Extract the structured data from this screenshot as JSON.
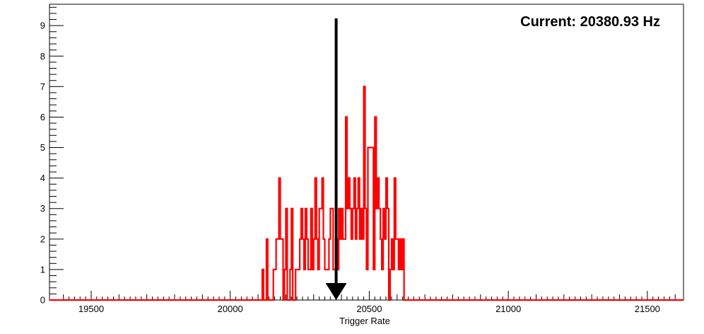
{
  "chart_data": {
    "type": "histogram",
    "title": "",
    "xlabel": "Trigger Rate",
    "ylabel": "",
    "xlim": [
      19350,
      21630
    ],
    "ylim": [
      0,
      9.7
    ],
    "x_ticks": [
      19500,
      20000,
      20500,
      21000,
      21500
    ],
    "x_tick_labels": [
      "19500",
      "20000",
      "20500",
      "21000",
      "21500"
    ],
    "y_ticks": [
      0,
      1,
      2,
      3,
      4,
      5,
      6,
      7,
      8,
      9
    ],
    "y_tick_labels": [
      "0",
      "1",
      "2",
      "3",
      "4",
      "5",
      "6",
      "7",
      "8",
      "9"
    ],
    "grid": false,
    "series": [
      {
        "color": "#ff0000",
        "bin_width": 5,
        "bins_start": 20115,
        "counts": [
          1,
          0,
          0,
          2,
          0,
          0,
          0,
          0,
          1,
          1,
          2,
          2,
          4,
          2,
          2,
          0,
          1,
          3,
          0,
          0,
          1,
          3,
          0,
          0,
          1,
          1,
          1,
          2,
          3,
          2,
          1,
          3,
          2,
          1,
          1,
          3,
          1,
          2,
          4,
          2,
          1,
          3,
          3,
          4,
          2,
          1,
          1,
          1,
          2,
          3,
          3,
          1,
          1,
          2,
          1,
          3,
          2,
          3,
          2,
          2,
          6,
          3,
          4,
          3,
          2,
          3,
          4,
          2,
          3,
          4,
          2,
          3,
          2,
          7,
          3,
          1,
          5,
          5,
          5,
          5,
          1,
          6,
          3,
          4,
          3,
          2,
          1,
          3,
          2,
          4,
          3,
          0,
          1,
          2,
          1,
          4,
          2,
          2,
          1,
          2,
          1,
          2,
          0,
          0,
          0,
          0,
          0,
          0
        ]
      }
    ],
    "annotations": {
      "current_label": "Current: 20380.93 Hz",
      "current_value": 20380.93,
      "marker": "down-arrow"
    }
  }
}
